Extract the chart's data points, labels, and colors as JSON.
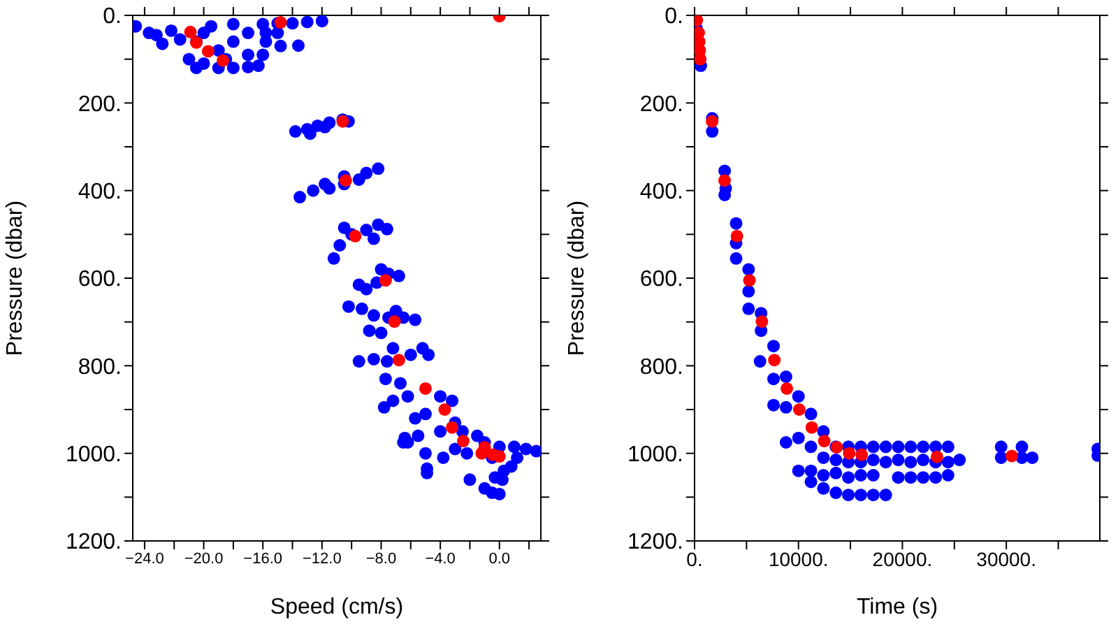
{
  "chart_data": [
    {
      "type": "scatter",
      "xlabel": "Speed (cm/s)",
      "ylabel": "Pressure (dbar)",
      "marker": "circle",
      "xlim": [
        -24.8,
        2.8
      ],
      "xticks": [
        {
          "value": -24,
          "label": "−24.0"
        },
        {
          "value": -22,
          "label": null
        },
        {
          "value": -20,
          "label": "−20.0"
        },
        {
          "value": -18,
          "label": null
        },
        {
          "value": -16,
          "label": "−16.0"
        },
        {
          "value": -14,
          "label": null
        },
        {
          "value": -12,
          "label": "−12.0"
        },
        {
          "value": -10,
          "label": null
        },
        {
          "value": -8,
          "label": "−8.0"
        },
        {
          "value": -6,
          "label": null
        },
        {
          "value": -4,
          "label": "−4.0"
        },
        {
          "value": -2,
          "label": null
        },
        {
          "value": 0,
          "label": "0.0"
        },
        {
          "value": 2,
          "label": null
        }
      ],
      "ylim": [
        1200,
        0
      ],
      "yticks": [
        {
          "value": 0,
          "label": "0."
        },
        {
          "value": 100,
          "label": null
        },
        {
          "value": 200,
          "label": "200."
        },
        {
          "value": 300,
          "label": null
        },
        {
          "value": 400,
          "label": "400."
        },
        {
          "value": 500,
          "label": null
        },
        {
          "value": 600,
          "label": "600."
        },
        {
          "value": 700,
          "label": null
        },
        {
          "value": 800,
          "label": "800."
        },
        {
          "value": 900,
          "label": null
        },
        {
          "value": 1000,
          "label": "1000."
        },
        {
          "value": 1100,
          "label": null
        },
        {
          "value": 1200,
          "label": "1200."
        }
      ],
      "series": [
        {
          "color": "#0000ff",
          "x": [
            -24.6,
            -23.7,
            -23.2,
            -22.8,
            -22.2,
            -21.6,
            -21,
            -20.5,
            -20,
            -19,
            -18,
            -17,
            -16.3,
            -16,
            -15.8,
            -14.8,
            -16,
            -15,
            -14,
            -13,
            -12,
            -18,
            -19.5,
            -20.5,
            -19,
            -18,
            -17,
            -17,
            -18.5,
            -20,
            -15.8,
            -15,
            -13.6,
            -13.8,
            -13,
            -12.3,
            -11.5,
            -10.6,
            -10.2,
            -12.8,
            -11.8,
            -13.5,
            -12.6,
            -11.5,
            -10.5,
            -9.5,
            -9,
            -8.2,
            -10.5,
            -11.8,
            -11.2,
            -10.8,
            -10,
            -9,
            -8.2,
            -7.6,
            -8.5,
            -10.5,
            -10.2,
            -9.3,
            -9,
            -8.3,
            -7.5,
            -6.8,
            -8,
            -9.5,
            -8.8,
            -8,
            -7.5,
            -6.5,
            -5.7,
            -8.5,
            -7,
            -9.5,
            -8.5,
            -7.7,
            -7.6,
            -6,
            -5.2,
            -4.8,
            -7.2,
            -7.8,
            -7.2,
            -6.7,
            -6.2,
            -5.7,
            -5,
            -4,
            -3.2,
            -5.5,
            -6.4,
            -6.2,
            -4,
            -3,
            -2.5,
            -1.5,
            -3,
            -1,
            0,
            1,
            1.8,
            2.5,
            1.2,
            -0.5,
            0.3,
            -0.3,
            0.2,
            -2,
            -4.9,
            -4.9,
            -3.8,
            -1,
            -0.5,
            0,
            -6.5,
            -5,
            -2.2,
            0.8
          ],
          "values": [
            25,
            40,
            45,
            65,
            35,
            55,
            100,
            120,
            110,
            120,
            120,
            118,
            115,
            90,
            60,
            70,
            20,
            18,
            18,
            15,
            13,
            20,
            25,
            60,
            80,
            60,
            90,
            40,
            100,
            40,
            40,
            40,
            69,
            265,
            260,
            252,
            245,
            238,
            242,
            270,
            255,
            415,
            400,
            395,
            385,
            375,
            360,
            350,
            368,
            385,
            555,
            525,
            500,
            490,
            478,
            488,
            510,
            485,
            665,
            670,
            625,
            610,
            590,
            595,
            580,
            615,
            720,
            725,
            690,
            690,
            695,
            685,
            675,
            790,
            785,
            830,
            790,
            775,
            760,
            775,
            760,
            895,
            880,
            840,
            870,
            920,
            910,
            870,
            880,
            960,
            965,
            975,
            950,
            930,
            950,
            960,
            990,
            975,
            985,
            985,
            990,
            995,
            1010,
            1010,
            1040,
            1055,
            1060,
            1060,
            1035,
            1045,
            1010,
            1080,
            1090,
            1093,
            975,
            1000,
            1000,
            1030
          ]
        },
        {
          "color": "#ff0000",
          "x": [
            -20.9,
            -20.5,
            -19.7,
            -18.7,
            -14.8,
            0,
            -10.6,
            -10.4,
            -9.75,
            -7.7,
            -7.1,
            -6.8,
            -5,
            -3.7,
            -3.2,
            -2.45,
            -1,
            -1.2,
            -0.45,
            0
          ],
          "values": [
            38,
            62,
            82,
            103,
            16,
            2,
            242,
            377,
            504,
            605,
            699,
            787,
            852,
            900,
            941,
            972,
            986,
            1000,
            1003,
            1007
          ]
        }
      ]
    },
    {
      "type": "scatter",
      "xlabel": "Time (s)",
      "ylabel": "Pressure (dbar)",
      "marker": "circle",
      "xlim": [
        0,
        39000
      ],
      "xticks": [
        {
          "value": 0,
          "label": "0."
        },
        {
          "value": 5000,
          "label": null
        },
        {
          "value": 10000,
          "label": "10000."
        },
        {
          "value": 15000,
          "label": null
        },
        {
          "value": 20000,
          "label": "20000."
        },
        {
          "value": 25000,
          "label": null
        },
        {
          "value": 30000,
          "label": "30000."
        },
        {
          "value": 35000,
          "label": null
        }
      ],
      "ylim": [
        1200,
        0
      ],
      "yticks": [
        {
          "value": 0,
          "label": "0."
        },
        {
          "value": 100,
          "label": null
        },
        {
          "value": 200,
          "label": "200."
        },
        {
          "value": 300,
          "label": null
        },
        {
          "value": 400,
          "label": "400."
        },
        {
          "value": 500,
          "label": null
        },
        {
          "value": 600,
          "label": "600."
        },
        {
          "value": 700,
          "label": null
        },
        {
          "value": 800,
          "label": "800."
        },
        {
          "value": 900,
          "label": null
        },
        {
          "value": 1000,
          "label": "1000."
        },
        {
          "value": 1100,
          "label": null
        },
        {
          "value": 1200,
          "label": "1200."
        }
      ],
      "series": [
        {
          "color": "#0000ff",
          "x": [
            200,
            600,
            1700,
            1700,
            2900,
            2900,
            3000,
            4000,
            4000,
            4000,
            5200,
            5200,
            5200,
            6400,
            6400,
            6300,
            7600,
            7600,
            7600,
            8800,
            8800,
            8800,
            10000,
            10000,
            10000,
            11200,
            11200,
            11200,
            11200,
            12400,
            12400,
            12400,
            12400,
            13600,
            13600,
            13600,
            13600,
            14800,
            14800,
            14800,
            14800,
            16000,
            16000,
            16000,
            16000,
            17200,
            17200,
            17200,
            17200,
            18400,
            18400,
            18400,
            19600,
            19600,
            19600,
            20800,
            20800,
            20800,
            22000,
            22000,
            22000,
            23200,
            23200,
            23200,
            24400,
            24400,
            24400,
            25500,
            29500,
            29500,
            31500,
            31500,
            32500,
            38800,
            38800
          ],
          "values": [
            30,
            115,
            235,
            265,
            355,
            410,
            395,
            475,
            520,
            555,
            580,
            630,
            670,
            680,
            720,
            790,
            755,
            830,
            890,
            825,
            895,
            975,
            870,
            965,
            1040,
            910,
            985,
            1040,
            1065,
            950,
            1010,
            1050,
            1080,
            985,
            1015,
            1045,
            1090,
            985,
            1020,
            1055,
            1095,
            985,
            1020,
            1050,
            1095,
            985,
            1015,
            1050,
            1095,
            985,
            1020,
            1095,
            985,
            1015,
            1055,
            985,
            1020,
            1055,
            985,
            1015,
            1055,
            985,
            1020,
            1055,
            985,
            1020,
            1050,
            1015,
            985,
            1010,
            985,
            1010,
            1010,
            990,
            1005
          ]
        },
        {
          "color": "#ff0000",
          "x": [
            220,
            400,
            450,
            500,
            550,
            1690,
            2890,
            4080,
            5280,
            6480,
            7680,
            8880,
            10080,
            11280,
            12480,
            13680,
            14880,
            16080,
            23330,
            30530
          ],
          "values": [
            11,
            40,
            60,
            80,
            100,
            242,
            377,
            504,
            605,
            699,
            787,
            852,
            900,
            941,
            972,
            986,
            1000,
            1003,
            1008,
            1006
          ]
        }
      ]
    }
  ]
}
